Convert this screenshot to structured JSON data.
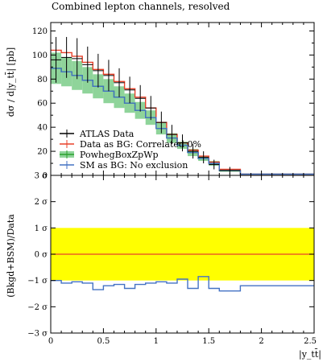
{
  "chart_data": [
    {
      "type": "line",
      "title": "Combined lepton channels, resolved",
      "ylabel": "dσ / d|y_tt̄| [pb]",
      "ylim": [
        0,
        127
      ],
      "yticks": [
        0,
        20,
        40,
        60,
        80,
        100,
        120
      ],
      "ytick_labels": [
        "0",
        "20",
        "40",
        "60",
        "80",
        "100",
        "120"
      ],
      "grid": false,
      "legend_position": "lower-left",
      "x_edges": [
        0,
        0.1,
        0.2,
        0.3,
        0.4,
        0.5,
        0.6,
        0.7,
        0.8,
        0.9,
        1.0,
        1.1,
        1.2,
        1.3,
        1.4,
        1.5,
        1.6,
        1.8,
        2.5
      ],
      "series": [
        {
          "name": "ATLAS Data",
          "color": "#000000",
          "values": [
            96,
            98,
            97,
            92,
            87,
            83,
            77,
            71,
            64,
            56,
            44,
            34,
            27,
            20,
            15,
            9,
            4,
            0
          ],
          "errors": [
            19,
            17,
            17,
            15,
            14,
            13,
            12,
            11,
            11,
            10,
            9,
            8,
            7,
            6,
            5,
            4,
            3,
            0
          ]
        },
        {
          "name": "Data as BG: Correlated 0%",
          "color": "#e8412a",
          "values": [
            104,
            102,
            99,
            94,
            88,
            84,
            78,
            72,
            65,
            56,
            44,
            34,
            27,
            21,
            16,
            11,
            5,
            1
          ]
        },
        {
          "name": "PowhegBoxZpWp",
          "color": "#2ca02c",
          "band_color": "#8fd49a",
          "values": [
            89,
            86,
            83,
            79,
            74,
            70,
            65,
            60,
            54,
            48,
            39,
            31,
            25,
            19,
            14,
            10,
            4,
            1
          ],
          "band_halfwidth": [
            13,
            12,
            12,
            11,
            10,
            10,
            9,
            8,
            7,
            6,
            5,
            4,
            3,
            3,
            2,
            2,
            1,
            0
          ]
        },
        {
          "name": "SM as BG: No exclusion",
          "color": "#4472c4",
          "values": [
            89,
            86,
            83,
            79,
            74,
            70,
            65,
            60,
            54,
            48,
            39,
            31,
            25,
            19,
            14,
            10,
            4,
            1
          ]
        }
      ]
    },
    {
      "type": "line",
      "ylabel": "(Bkgd+BSM)/Data",
      "xlabel": "|y_tt̄|",
      "ylim": [
        -3,
        3
      ],
      "xlim": [
        0,
        2.5
      ],
      "yticks": [
        -3,
        -2,
        -1,
        0,
        1,
        2,
        3
      ],
      "ytick_labels": [
        "−3 σ",
        "−2 σ",
        "−1 σ",
        "0 σ",
        "1 σ",
        "2 σ",
        "3 σ"
      ],
      "xticks": [
        0,
        0.5,
        1,
        1.5,
        2,
        2.5
      ],
      "xtick_labels": [
        "0",
        "0.5",
        "1",
        "1.5",
        "2",
        "2.5"
      ],
      "band": {
        "from": -1,
        "to": 1,
        "color": "#ffff00"
      },
      "reference_line": {
        "y": 0,
        "color": "#e8412a"
      },
      "x_edges": [
        0,
        0.1,
        0.2,
        0.3,
        0.4,
        0.5,
        0.6,
        0.7,
        0.8,
        0.9,
        1.0,
        1.1,
        1.2,
        1.3,
        1.4,
        1.5,
        1.6,
        1.8,
        2.5
      ],
      "series": [
        {
          "color": "#4472c4",
          "values": [
            -1.0,
            -1.1,
            -1.05,
            -1.1,
            -1.35,
            -1.2,
            -1.15,
            -1.3,
            -1.15,
            -1.1,
            -1.05,
            -1.1,
            -0.95,
            -1.3,
            -0.85,
            -1.3,
            -1.4,
            -1.2
          ]
        }
      ]
    }
  ]
}
